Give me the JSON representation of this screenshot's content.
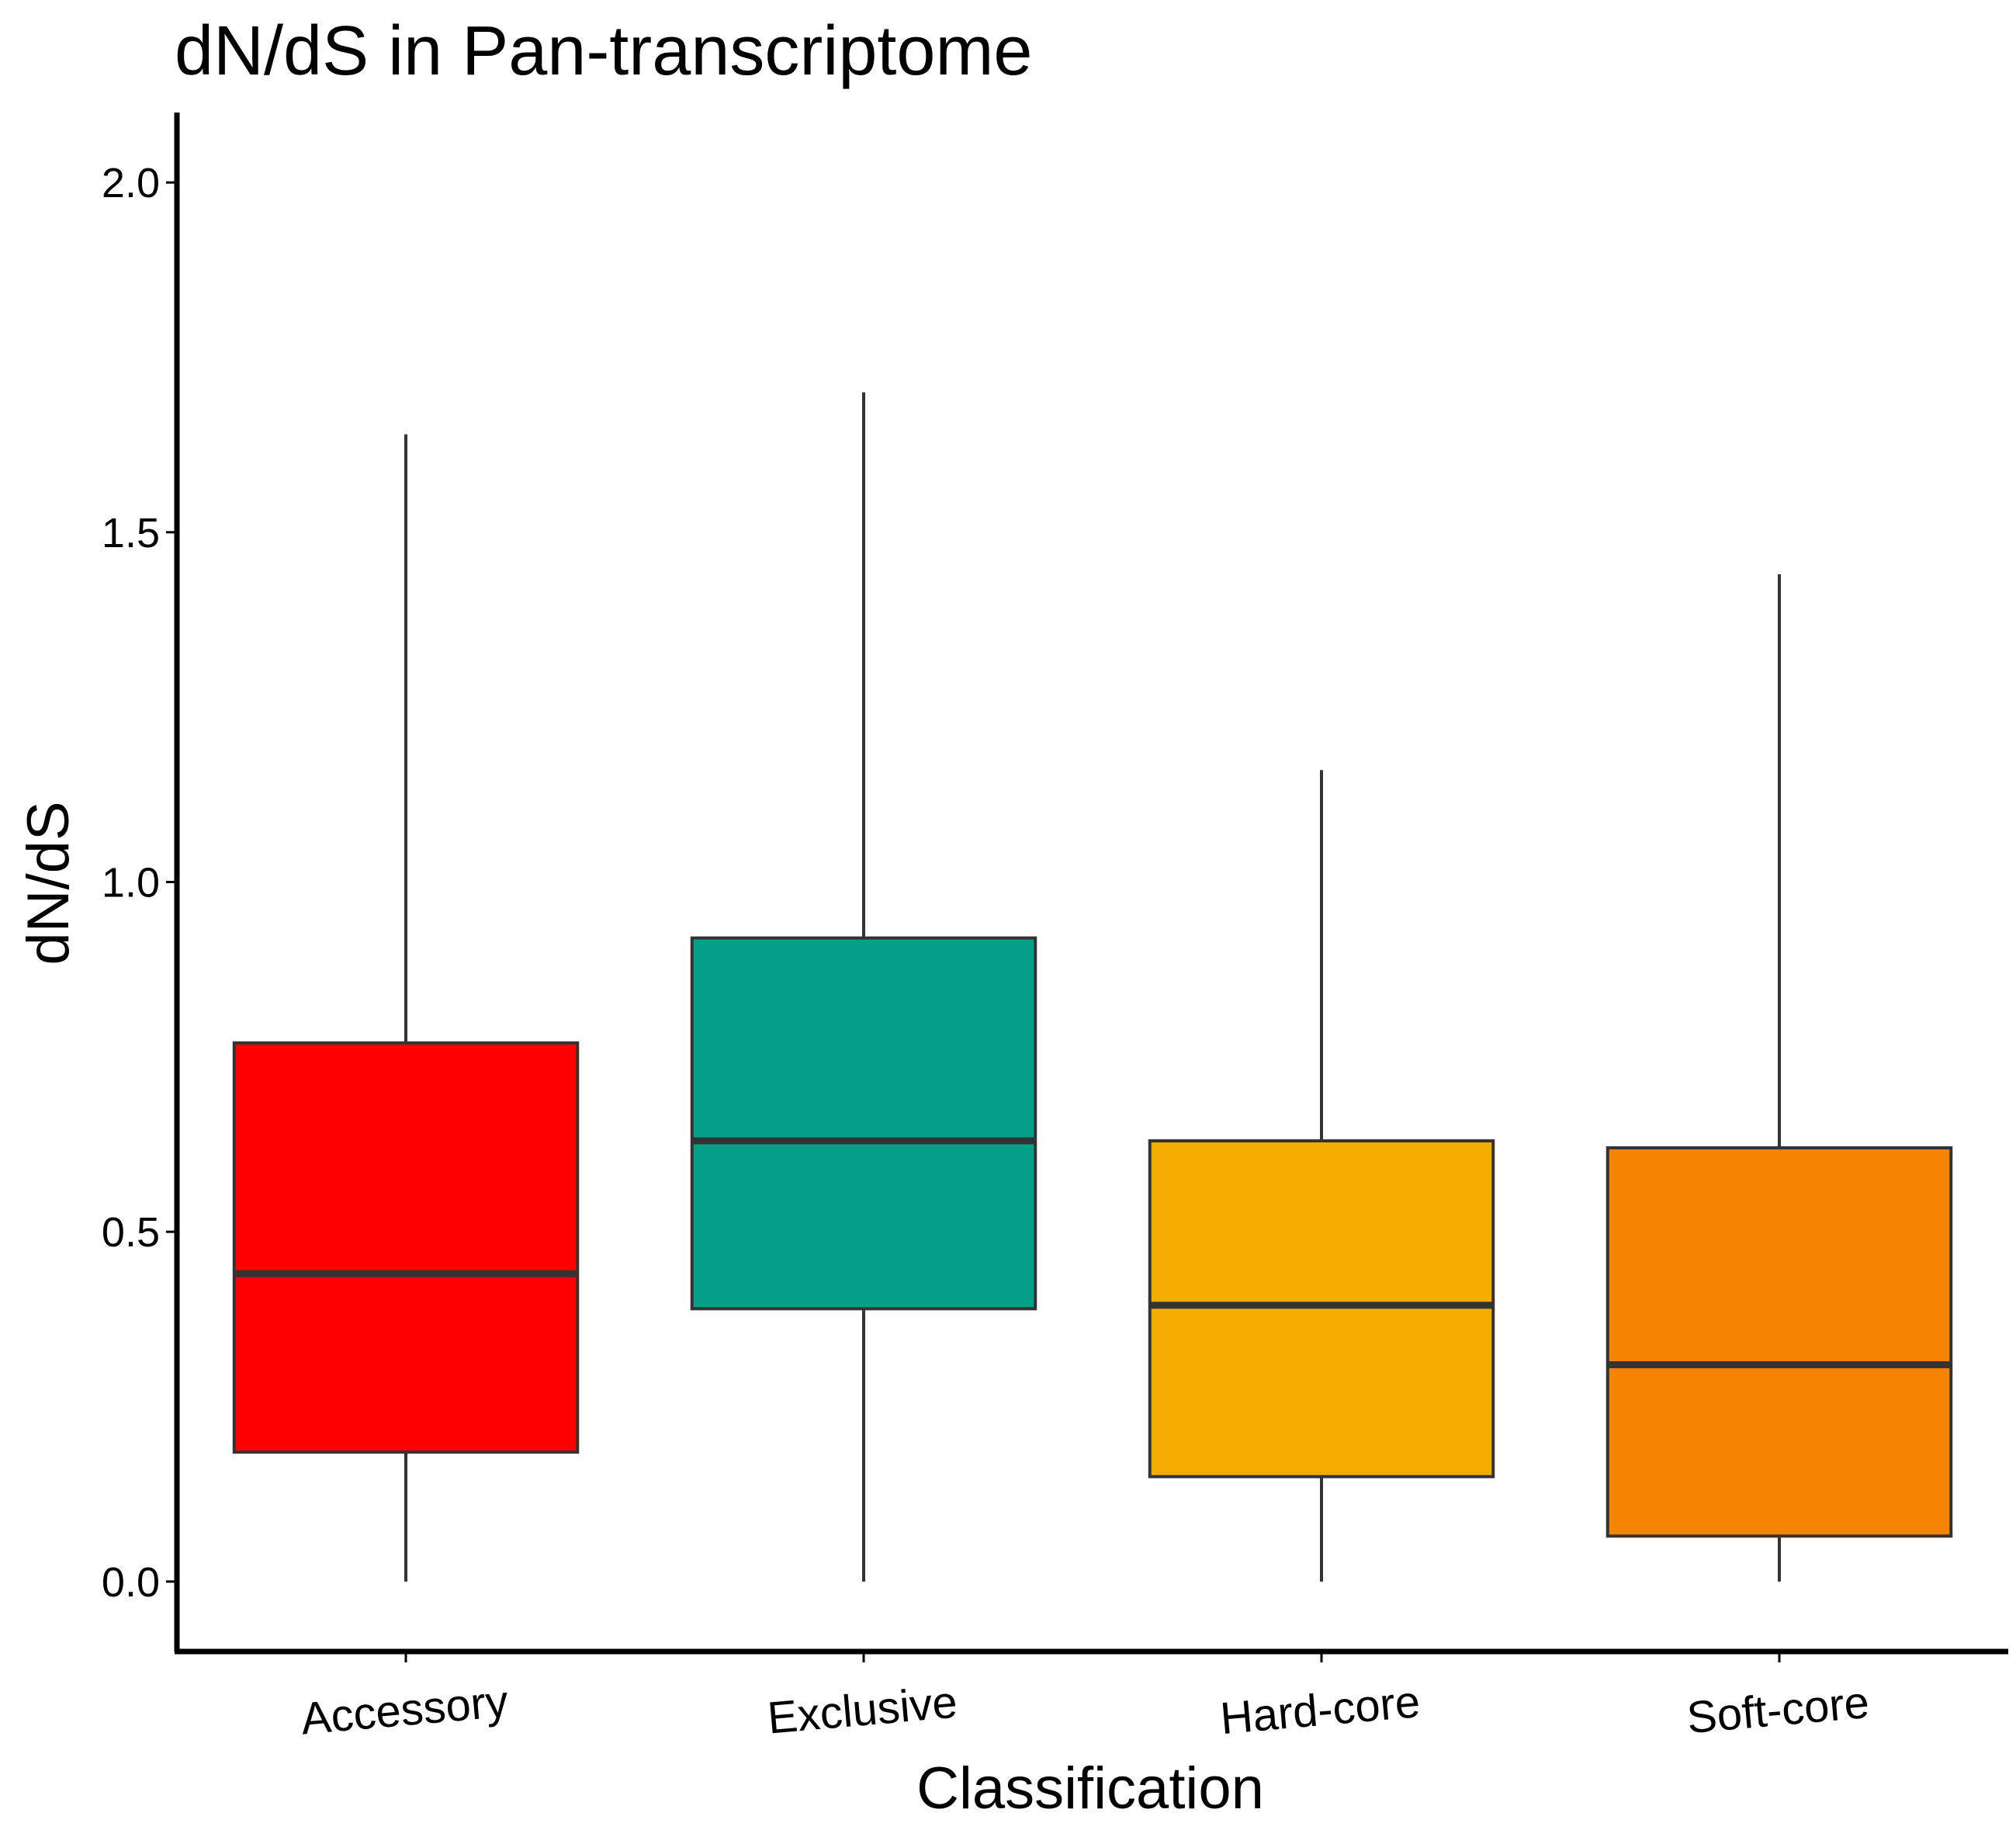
{
  "chart_data": {
    "type": "boxplot",
    "title": "dN/dS in Pan-transcriptome",
    "xlabel": "Classification",
    "ylabel": "dN/dS",
    "ylim": [
      -0.1,
      2.1
    ],
    "yticks": [
      0.0,
      0.5,
      1.0,
      1.5,
      2.0
    ],
    "ytick_labels": [
      "0.0",
      "0.5",
      "1.0",
      "1.5",
      "2.0"
    ],
    "categories": [
      "Accessory",
      "Exclusive",
      "Hard-core",
      "Soft-core"
    ],
    "boxes": [
      {
        "category": "Accessory",
        "whisker_low": 0.0,
        "q1": 0.185,
        "median": 0.44,
        "q3": 0.77,
        "whisker_high": 1.64,
        "color": "#FF0000"
      },
      {
        "category": "Exclusive",
        "whisker_low": 0.0,
        "q1": 0.39,
        "median": 0.63,
        "q3": 0.92,
        "whisker_high": 1.7,
        "color": "#02A088"
      },
      {
        "category": "Hard-core",
        "whisker_low": 0.0,
        "q1": 0.15,
        "median": 0.395,
        "q3": 0.63,
        "whisker_high": 1.16,
        "color": "#F4AD00"
      },
      {
        "category": "Soft-core",
        "whisker_low": 0.0,
        "q1": 0.065,
        "median": 0.31,
        "q3": 0.62,
        "whisker_high": 1.44,
        "color": "#F88300"
      }
    ],
    "grid": false,
    "legend": "none"
  }
}
